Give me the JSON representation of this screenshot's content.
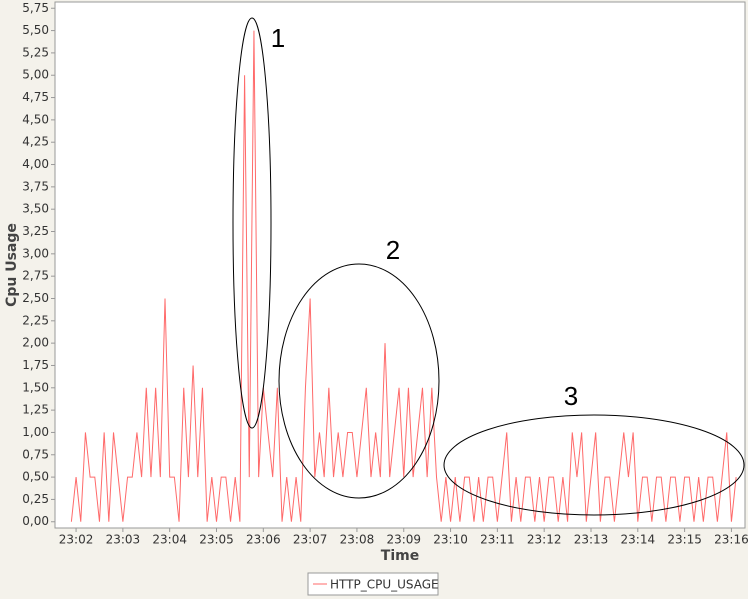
{
  "chart_data": {
    "type": "line",
    "x_label": "Time",
    "y_label": "Cpu Usage",
    "x": [
      1381.9,
      1382.0,
      1382.1,
      1382.2,
      1382.3,
      1382.4,
      1382.5,
      1382.6,
      1382.7,
      1382.8,
      1382.9,
      1383.0,
      1383.1,
      1383.2,
      1383.3,
      1383.4,
      1383.5,
      1383.6,
      1383.7,
      1383.8,
      1383.9,
      1384.0,
      1384.1,
      1384.2,
      1384.3,
      1384.4,
      1384.5,
      1384.6,
      1384.7,
      1384.8,
      1384.9,
      1385.0,
      1385.1,
      1385.2,
      1385.3,
      1385.4,
      1385.5,
      1385.6,
      1385.7,
      1385.8,
      1385.9,
      1386.0,
      1386.1,
      1386.2,
      1386.3,
      1386.4,
      1386.5,
      1386.6,
      1386.7,
      1386.8,
      1386.9,
      1387.0,
      1387.1,
      1387.2,
      1387.3,
      1387.4,
      1387.5,
      1387.6,
      1387.7,
      1387.8,
      1387.9,
      1388.0,
      1388.1,
      1388.2,
      1388.3,
      1388.4,
      1388.5,
      1388.6,
      1388.7,
      1388.8,
      1388.9,
      1389.0,
      1389.1,
      1389.2,
      1389.3,
      1389.4,
      1389.5,
      1389.6,
      1389.7,
      1389.8,
      1389.9,
      1390.0,
      1390.1,
      1390.2,
      1390.3,
      1390.4,
      1390.5,
      1390.6,
      1390.7,
      1390.8,
      1390.9,
      1391.0,
      1391.1,
      1391.2,
      1391.3,
      1391.4,
      1391.5,
      1391.6,
      1391.7,
      1391.8,
      1391.9,
      1392.0,
      1392.1,
      1392.2,
      1392.3,
      1392.4,
      1392.5,
      1392.6,
      1392.7,
      1392.8,
      1392.9,
      1393.0,
      1393.1,
      1393.2,
      1393.3,
      1393.4,
      1393.5,
      1393.6,
      1393.7,
      1393.8,
      1393.9,
      1394.0,
      1394.1,
      1394.2,
      1394.3,
      1394.4,
      1394.5,
      1394.6,
      1394.7,
      1394.8,
      1394.9,
      1395.0,
      1395.1,
      1395.2,
      1395.3,
      1395.4,
      1395.5,
      1395.6,
      1395.7,
      1395.8,
      1395.9,
      1396.0,
      1396.1
    ],
    "series": [
      {
        "name": "HTTP_CPU_USAGE",
        "color": "#ff6a6a",
        "values": [
          0,
          0.5,
          0,
          1,
          0.5,
          0.5,
          0,
          1,
          0,
          1,
          0.5,
          0,
          0.5,
          0.5,
          1,
          0.5,
          1.5,
          0.5,
          1.5,
          0.5,
          2.5,
          0.5,
          0.5,
          0,
          1.5,
          0.5,
          1.75,
          0.5,
          1.5,
          0,
          0.5,
          0,
          0.5,
          0.5,
          0,
          0.5,
          0,
          5,
          0.5,
          5.5,
          0.5,
          1.5,
          1,
          0.5,
          1.5,
          0,
          0.5,
          0,
          0.5,
          0,
          1.5,
          2.5,
          0.5,
          1,
          0.5,
          1.5,
          0.5,
          1,
          0.5,
          1,
          1,
          0.5,
          1,
          1.5,
          0.5,
          1,
          0.5,
          2,
          0.5,
          1,
          1.5,
          0.5,
          1.5,
          0.5,
          1,
          1.5,
          0.5,
          1.5,
          0.5,
          0,
          0.5,
          0,
          0.5,
          0,
          0.5,
          0.5,
          0,
          0.5,
          0,
          0.5,
          0.5,
          0,
          0.5,
          1,
          0,
          0.5,
          0,
          0.5,
          0.5,
          0,
          0.5,
          0,
          0.5,
          0.5,
          0,
          0.5,
          0,
          1,
          0.5,
          1,
          0,
          0.5,
          1,
          0,
          0.5,
          0.5,
          0,
          0.5,
          1,
          0.5,
          1,
          0,
          0.5,
          0.5,
          0,
          0.5,
          0.5,
          0,
          0.5,
          0.5,
          0,
          0.5,
          0.5,
          0,
          0.5,
          0,
          0.5,
          0.5,
          0,
          0.5,
          1,
          0,
          0.5
        ]
      }
    ],
    "xlim": [
      1381.55,
      1396.29
    ],
    "xticks": [
      {
        "value": 1382,
        "label": "23:02"
      },
      {
        "value": 1383,
        "label": "23:03"
      },
      {
        "value": 1384,
        "label": "23:04"
      },
      {
        "value": 1385,
        "label": "23:05"
      },
      {
        "value": 1386,
        "label": "23:06"
      },
      {
        "value": 1387,
        "label": "23:07"
      },
      {
        "value": 1388,
        "label": "23:08"
      },
      {
        "value": 1389,
        "label": "23:09"
      },
      {
        "value": 1390,
        "label": "23:10"
      },
      {
        "value": 1391,
        "label": "23:11"
      },
      {
        "value": 1392,
        "label": "23:12"
      },
      {
        "value": 1393,
        "label": "23:13"
      },
      {
        "value": 1394,
        "label": "23:14"
      },
      {
        "value": 1395,
        "label": "23:15"
      },
      {
        "value": 1396,
        "label": "23:16"
      }
    ],
    "ylim": [
      -0.07,
      5.82
    ],
    "yticks": [
      {
        "value": 0,
        "label": "0,00"
      },
      {
        "value": 0.25,
        "label": "0,25"
      },
      {
        "value": 0.5,
        "label": "0,50"
      },
      {
        "value": 0.75,
        "label": "0,75"
      },
      {
        "value": 1,
        "label": "1,00"
      },
      {
        "value": 1.25,
        "label": "1,25"
      },
      {
        "value": 1.5,
        "label": "1,50"
      },
      {
        "value": 1.75,
        "label": "1,75"
      },
      {
        "value": 2,
        "label": "2,00"
      },
      {
        "value": 2.25,
        "label": "2,25"
      },
      {
        "value": 2.5,
        "label": "2,50"
      },
      {
        "value": 2.75,
        "label": "2,75"
      },
      {
        "value": 3,
        "label": "3,00"
      },
      {
        "value": 3.25,
        "label": "3,25"
      },
      {
        "value": 3.5,
        "label": "3,50"
      },
      {
        "value": 3.75,
        "label": "3,75"
      },
      {
        "value": 4,
        "label": "4,00"
      },
      {
        "value": 4.25,
        "label": "4,25"
      },
      {
        "value": 4.5,
        "label": "4,50"
      },
      {
        "value": 4.75,
        "label": "4,75"
      },
      {
        "value": 5,
        "label": "5,00"
      },
      {
        "value": 5.25,
        "label": "5,25"
      },
      {
        "value": 5.5,
        "label": "5,50"
      },
      {
        "value": 5.75,
        "label": "5,75"
      }
    ],
    "legend": "bottom",
    "annotations": [
      "1",
      "2",
      "3"
    ]
  }
}
